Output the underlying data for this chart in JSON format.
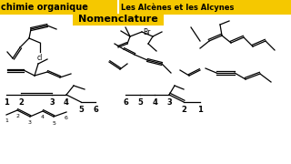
{
  "bg_color": "#ffffff",
  "header_bg": "#f5c800",
  "header_text": "chimie organique",
  "header_text2": "Les Alcènes et les Alcynes",
  "sub_header_bg": "#f5c800",
  "sub_header_text": "Nomenclature",
  "line_color": "#000000",
  "label_cl": "cl",
  "label_br": "Br"
}
